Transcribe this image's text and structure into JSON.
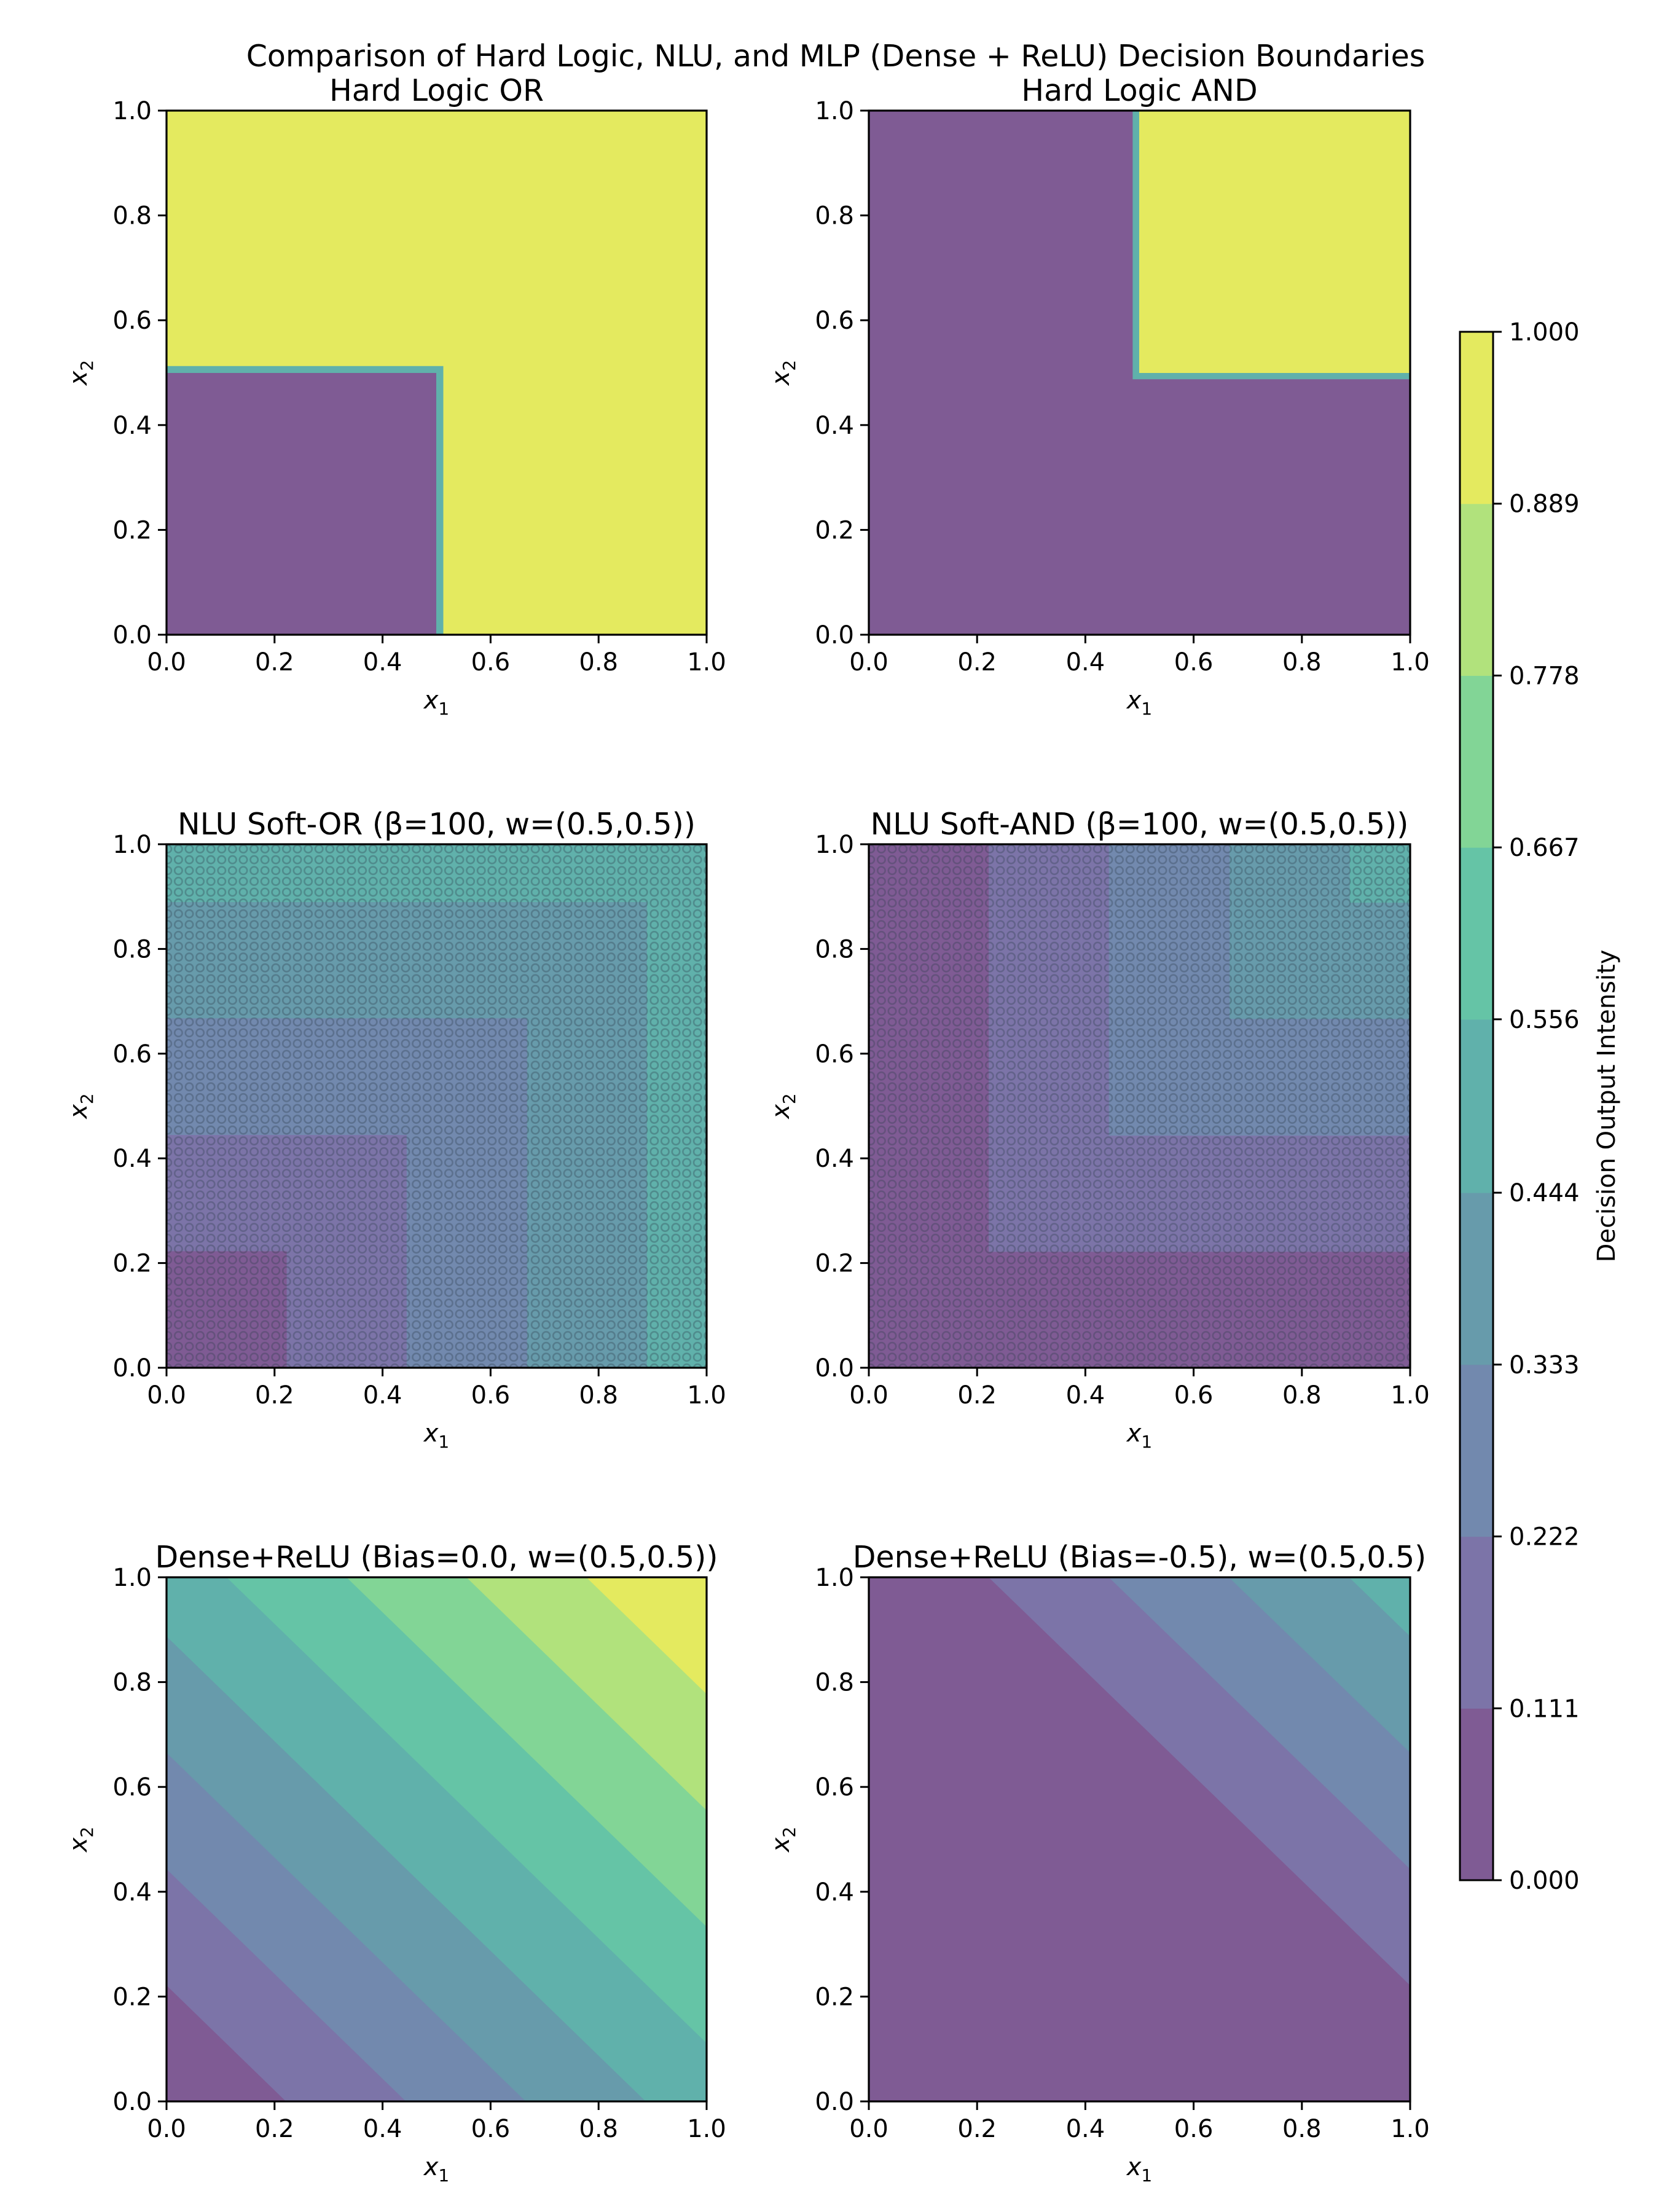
{
  "figure": {
    "suptitle": "Comparison of Hard Logic, NLU, and MLP (Dense + ReLU) Decision Boundaries"
  },
  "colorbar": {
    "label": "Decision Output Intensity",
    "ticks": [
      "0.000",
      "0.111",
      "0.222",
      "0.333",
      "0.444",
      "0.556",
      "0.667",
      "0.778",
      "0.889",
      "1.000"
    ],
    "levels": [
      0.0,
      0.111,
      0.222,
      0.333,
      0.444,
      0.556,
      0.667,
      0.778,
      0.889,
      1.0
    ],
    "colors": [
      "#7f5b94",
      "#7c74a8",
      "#7289ae",
      "#679bab",
      "#60b1ab",
      "#65c4a6",
      "#82d596",
      "#b1e27c",
      "#e4ea5f"
    ],
    "colormap": "viridis",
    "alpha": 0.7
  },
  "chart_data": [
    {
      "type": "heatmap",
      "id": "hard-or",
      "title": "Hard Logic OR",
      "xlabel_main": "x",
      "xlabel_sub": "1",
      "ylabel_main": "x",
      "ylabel_sub": "2",
      "xlim": [
        0,
        1
      ],
      "ylim": [
        0,
        1
      ],
      "xticks": [
        "0.0",
        "0.2",
        "0.4",
        "0.6",
        "0.8",
        "1.0"
      ],
      "yticks": [
        "0.0",
        "0.2",
        "0.4",
        "0.6",
        "0.8",
        "1.0"
      ],
      "function": "1 if x1>=0.5 or x2>=0.5 else 0",
      "threshold": 0.5,
      "regions": [
        {
          "description": "x1<0.5 and x2<0.5",
          "value": 0.0
        },
        {
          "description": "otherwise",
          "value": 1.0
        }
      ],
      "marker_overlay": false
    },
    {
      "type": "heatmap",
      "id": "hard-and",
      "title": "Hard Logic AND",
      "xlabel_main": "x",
      "xlabel_sub": "1",
      "ylabel_main": "x",
      "ylabel_sub": "2",
      "xlim": [
        0,
        1
      ],
      "ylim": [
        0,
        1
      ],
      "xticks": [
        "0.0",
        "0.2",
        "0.4",
        "0.6",
        "0.8",
        "1.0"
      ],
      "yticks": [
        "0.0",
        "0.2",
        "0.4",
        "0.6",
        "0.8",
        "1.0"
      ],
      "function": "1 if x1>=0.5 and x2>=0.5 else 0",
      "threshold": 0.5,
      "regions": [
        {
          "description": "x1>=0.5 and x2>=0.5",
          "value": 1.0
        },
        {
          "description": "otherwise",
          "value": 0.0
        }
      ],
      "marker_overlay": false
    },
    {
      "type": "heatmap",
      "id": "nlu-soft-or",
      "title": "NLU Soft-OR (β=100, w=(0.5,0.5))",
      "xlabel_main": "x",
      "xlabel_sub": "1",
      "ylabel_main": "x",
      "ylabel_sub": "2",
      "xlim": [
        0,
        1
      ],
      "ylim": [
        0,
        1
      ],
      "xticks": [
        "0.0",
        "0.2",
        "0.4",
        "0.6",
        "0.8",
        "1.0"
      ],
      "yticks": [
        "0.0",
        "0.2",
        "0.4",
        "0.6",
        "0.8",
        "1.0"
      ],
      "function": "0.5 * max(x1, x2)",
      "band_breaks": [
        0.222,
        0.444,
        0.667,
        0.889
      ],
      "band_levels": [
        0,
        1,
        2,
        3,
        4
      ],
      "marker_overlay": true
    },
    {
      "type": "heatmap",
      "id": "nlu-soft-and",
      "title": "NLU Soft-AND (β=100, w=(0.5,0.5))",
      "xlabel_main": "x",
      "xlabel_sub": "1",
      "ylabel_main": "x",
      "ylabel_sub": "2",
      "xlim": [
        0,
        1
      ],
      "ylim": [
        0,
        1
      ],
      "xticks": [
        "0.0",
        "0.2",
        "0.4",
        "0.6",
        "0.8",
        "1.0"
      ],
      "yticks": [
        "0.0",
        "0.2",
        "0.4",
        "0.6",
        "0.8",
        "1.0"
      ],
      "function": "0.5 * min(x1, x2)",
      "band_breaks": [
        0.222,
        0.444,
        0.667,
        0.889
      ],
      "band_levels": [
        0,
        1,
        2,
        3,
        4
      ],
      "marker_overlay": true
    },
    {
      "type": "heatmap",
      "id": "dense-relu-bias0",
      "title": "Dense+ReLU (Bias=0.0, w=(0.5,0.5))",
      "xlabel_main": "x",
      "xlabel_sub": "1",
      "ylabel_main": "x",
      "ylabel_sub": "2",
      "xlim": [
        0,
        1
      ],
      "ylim": [
        0,
        1
      ],
      "xticks": [
        "0.0",
        "0.2",
        "0.4",
        "0.6",
        "0.8",
        "1.0"
      ],
      "yticks": [
        "0.0",
        "0.2",
        "0.4",
        "0.6",
        "0.8",
        "1.0"
      ],
      "function": "max(0, 0.5*x1 + 0.5*x2 + 0.0)",
      "weights": [
        0.5,
        0.5
      ],
      "bias": 0.0,
      "marker_overlay": false
    },
    {
      "type": "heatmap",
      "id": "dense-relu-bias-neg",
      "title": "Dense+ReLU (Bias=-0.5), w=(0.5,0.5)",
      "xlabel_main": "x",
      "xlabel_sub": "1",
      "ylabel_main": "x",
      "ylabel_sub": "2",
      "xlim": [
        0,
        1
      ],
      "ylim": [
        0,
        1
      ],
      "xticks": [
        "0.0",
        "0.2",
        "0.4",
        "0.6",
        "0.8",
        "1.0"
      ],
      "yticks": [
        "0.0",
        "0.2",
        "0.4",
        "0.6",
        "0.8",
        "1.0"
      ],
      "function": "max(0, 0.5*x1 + 0.5*x2 - 0.5)",
      "weights": [
        0.5,
        0.5
      ],
      "bias": -0.5,
      "marker_overlay": false
    }
  ]
}
